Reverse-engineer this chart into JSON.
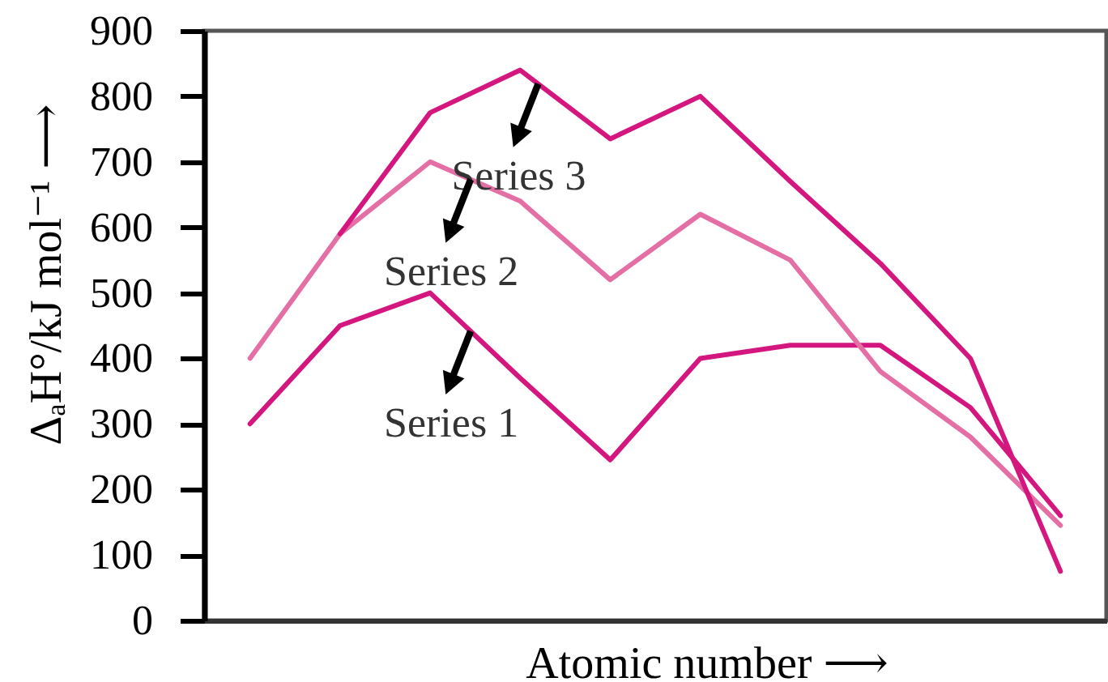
{
  "chart_data": {
    "type": "line",
    "xlabel": "Atomic number ⟶",
    "ylabel": "ΔₐH°/kJ mol⁻¹ ⟶",
    "categories": [
      null,
      null,
      null,
      null,
      null,
      null,
      null,
      null,
      null,
      null
    ],
    "ylim": [
      0,
      900
    ],
    "yticks": [
      0,
      100,
      200,
      300,
      400,
      500,
      600,
      700,
      800,
      900
    ],
    "tick_labels": "y",
    "series": [
      {
        "color": "#d4177f",
        "values": [
          300,
          450,
          500,
          370,
          245,
          400,
          420,
          420,
          325,
          160
        ]
      },
      {
        "color": "#e46fa4",
        "values": [
          400,
          590,
          700,
          640,
          520,
          620,
          550,
          380,
          280,
          145
        ]
      },
      {
        "color": "#d4177f",
        "values": [
          null,
          590,
          775,
          840,
          735,
          800,
          670,
          545,
          400,
          75
        ]
      }
    ],
    "annotations": [
      "Series 3",
      "Series 2",
      "Series 1"
    ]
  }
}
